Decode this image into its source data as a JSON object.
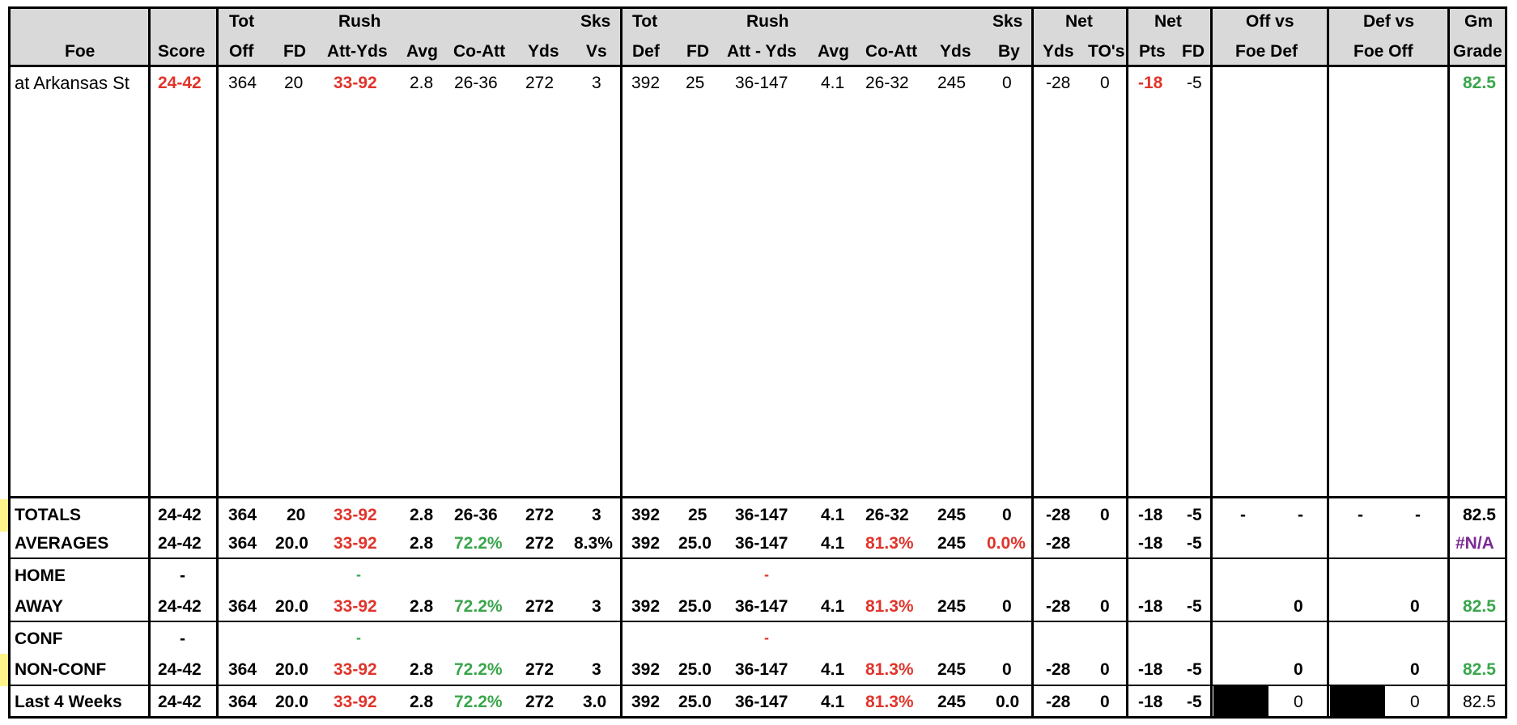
{
  "header": {
    "row1": {
      "tot1": "Tot",
      "rush1": "Rush",
      "sks1": "Sks",
      "tot2": "Tot",
      "rush2": "Rush",
      "sks2": "Sks",
      "net1": "Net",
      "net2": "Net",
      "offvs": "Off vs",
      "defvs": "Def vs",
      "gm": "Gm"
    },
    "row2": {
      "foe": "Foe",
      "score": "Score",
      "off": "Off",
      "fd1": "FD",
      "attyds1": "Att-Yds",
      "avg1": "Avg",
      "coatt1": "Co-Att",
      "yds1": "Yds",
      "vs": "Vs",
      "def": "Def",
      "fd2": "FD",
      "attyds2": "Att - Yds",
      "avg2": "Avg",
      "coatt2": "Co-Att",
      "yds2": "Yds",
      "by": "By",
      "netyds": "Yds",
      "tos": "TO's",
      "pts": "Pts",
      "fd3": "FD",
      "foedef": "Foe Def",
      "foeoff": "Foe Off",
      "grade": "Grade"
    }
  },
  "game": {
    "foe": "at Arkansas St",
    "score": "24-42",
    "off": "364",
    "fd": "20",
    "rush": "33-92",
    "avg": "2.8",
    "coatt": "26-36",
    "yds": "272",
    "sks": "3",
    "def": "392",
    "dfd": "25",
    "drush": "36-147",
    "davg": "4.1",
    "dcoatt": "26-32",
    "dyds": "245",
    "sksby": "0",
    "netyds": "-28",
    "tos": "0",
    "pts": "-18",
    "nfd": "-5",
    "grade": "82.5"
  },
  "totals": {
    "label": "TOTALS",
    "score": "24-42",
    "off": "364",
    "fd": "20",
    "rush": "33-92",
    "avg": "2.8",
    "coatt": "26-36",
    "yds": "272",
    "sks": "3",
    "def": "392",
    "dfd": "25",
    "drush": "36-147",
    "davg": "4.1",
    "dcoatt": "26-32",
    "dyds": "245",
    "sksby": "0",
    "netyds": "-28",
    "tos": "0",
    "pts": "-18",
    "nfd": "-5",
    "d1": "-",
    "d2": "-",
    "d3": "-",
    "d4": "-",
    "grade": "82.5"
  },
  "averages": {
    "label": "AVERAGES",
    "score": "24-42",
    "off": "364",
    "fd": "20.0",
    "rush": "33-92",
    "avg": "2.8",
    "coatt": "72.2%",
    "yds": "272",
    "sks": "8.3%",
    "def": "392",
    "dfd": "25.0",
    "drush": "36-147",
    "davg": "4.1",
    "dcoatt": "81.3%",
    "dyds": "245",
    "sksby": "0.0%",
    "netyds": "-28",
    "pts": "-18",
    "nfd": "-5",
    "grade": "#N/A"
  },
  "home": {
    "label": "HOME",
    "score": "-",
    "rush": "-",
    "drush": "-"
  },
  "away": {
    "label": "AWAY",
    "score": "24-42",
    "off": "364",
    "fd": "20.0",
    "rush": "33-92",
    "avg": "2.8",
    "coatt": "72.2%",
    "yds": "272",
    "sks": "3",
    "def": "392",
    "dfd": "25.0",
    "drush": "36-147",
    "davg": "4.1",
    "dcoatt": "81.3%",
    "dyds": "245",
    "sksby": "0",
    "netyds": "-28",
    "tos": "0",
    "pts": "-18",
    "nfd": "-5",
    "offvs": "0",
    "defvs": "0",
    "grade": "82.5"
  },
  "conf": {
    "label": "CONF",
    "score": "-",
    "rush": "-",
    "drush": "-"
  },
  "nonconf": {
    "label": "NON-CONF",
    "score": "24-42",
    "off": "364",
    "fd": "20.0",
    "rush": "33-92",
    "avg": "2.8",
    "coatt": "72.2%",
    "yds": "272",
    "sks": "3",
    "def": "392",
    "dfd": "25.0",
    "drush": "36-147",
    "davg": "4.1",
    "dcoatt": "81.3%",
    "dyds": "245",
    "sksby": "0",
    "netyds": "-28",
    "tos": "0",
    "pts": "-18",
    "nfd": "-5",
    "offvs": "0",
    "defvs": "0",
    "grade": "82.5"
  },
  "last4": {
    "label": "Last 4 Weeks",
    "score": "24-42",
    "off": "364",
    "fd": "20.0",
    "rush": "33-92",
    "avg": "2.8",
    "coatt": "72.2%",
    "yds": "272",
    "sks": "3.0",
    "def": "392",
    "dfd": "25.0",
    "drush": "36-147",
    "davg": "4.1",
    "dcoatt": "81.3%",
    "dyds": "245",
    "sksby": "0.0",
    "netyds": "-28",
    "tos": "0",
    "pts": "-18",
    "nfd": "-5",
    "offvs": "0",
    "defvs": "0",
    "grade": "82.5"
  },
  "colors": {
    "red": "#e0342b",
    "green": "#3aa64c",
    "purple": "#7b2a93",
    "header_bg": "#d9d9d9",
    "highlight": "#fff48a"
  }
}
